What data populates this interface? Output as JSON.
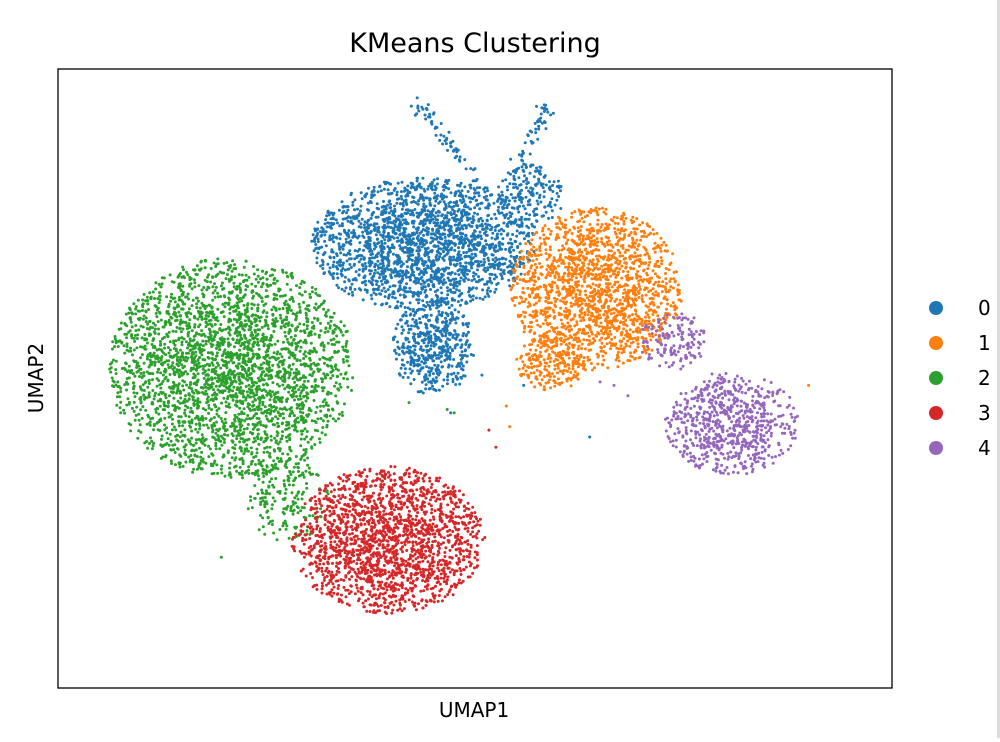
{
  "chart_data": {
    "type": "scatter",
    "title": "KMeans Clustering",
    "xlabel": "UMAP1",
    "ylabel": "UMAP2",
    "xlim": [
      -12,
      12
    ],
    "ylim": [
      -9,
      9
    ],
    "grid": false,
    "legend_position": "right",
    "series": [
      {
        "name": "0",
        "color": "#1f77b4",
        "blobs": [
          {
            "cx": -1.5,
            "cy": 3.9,
            "sx": 3.0,
            "sy": 1.8,
            "n": 2100
          },
          {
            "cx": -1.2,
            "cy": 0.9,
            "sx": 1.1,
            "sy": 1.3,
            "n": 500
          },
          {
            "cx": 1.6,
            "cy": 5.3,
            "sx": 0.9,
            "sy": 0.9,
            "n": 180
          }
        ],
        "arms": [
          {
            "from": [
              -1.5,
              7.8
            ],
            "to": [
              0.3,
              5.5
            ],
            "n": 55
          },
          {
            "from": [
              2.1,
              8.0
            ],
            "to": [
              1.1,
              5.8
            ],
            "n": 55
          },
          {
            "from": [
              -1.7,
              7.95
            ],
            "to": [
              -1.5,
              7.8
            ],
            "n": 10
          }
        ],
        "outliers": [
          [
            3.3,
            -1.7
          ],
          [
            1.4,
            -0.2
          ],
          [
            0.2,
            0.1
          ],
          [
            -0.7,
            -1.0
          ]
        ]
      },
      {
        "name": "1",
        "color": "#ff7f0e",
        "blobs": [
          {
            "cx": 3.5,
            "cy": 2.6,
            "sx": 2.3,
            "sy": 2.2,
            "n": 1700
          },
          {
            "cx": 2.2,
            "cy": 0.5,
            "sx": 1.0,
            "sy": 0.8,
            "n": 220
          }
        ],
        "arms": [],
        "outliers": [
          [
            9.6,
            -0.2
          ],
          [
            0.9,
            -0.8
          ],
          [
            1.0,
            -1.4
          ]
        ]
      },
      {
        "name": "2",
        "color": "#2ca02c",
        "blobs": [
          {
            "cx": -7.0,
            "cy": 0.3,
            "sx": 3.3,
            "sy": 3.0,
            "n": 2900
          },
          {
            "cx": -5.4,
            "cy": -3.4,
            "sx": 1.1,
            "sy": 1.3,
            "n": 200
          }
        ],
        "arms": [],
        "outliers": [
          [
            -0.6,
            -1.0
          ],
          [
            -0.8,
            -0.9
          ],
          [
            -7.3,
            -5.2
          ],
          [
            -1.9,
            -0.7
          ]
        ]
      },
      {
        "name": "3",
        "color": "#d62728",
        "blobs": [
          {
            "cx": -2.5,
            "cy": -4.7,
            "sx": 2.6,
            "sy": 2.0,
            "n": 1900
          }
        ],
        "arms": [],
        "outliers": [
          [
            0.4,
            -1.5
          ],
          [
            0.6,
            -2.0
          ]
        ]
      },
      {
        "name": "4",
        "color": "#9467bd",
        "blobs": [
          {
            "cx": 7.4,
            "cy": -1.3,
            "sx": 1.8,
            "sy": 1.4,
            "n": 700
          },
          {
            "cx": 5.7,
            "cy": 1.1,
            "sx": 0.9,
            "sy": 0.8,
            "n": 140
          }
        ],
        "arms": [],
        "outliers": [
          [
            4.0,
            -0.2
          ],
          [
            4.4,
            -0.5
          ],
          [
            3.6,
            -0.1
          ]
        ]
      }
    ]
  },
  "legend": {
    "items": [
      {
        "label": "0",
        "color": "#1f77b4"
      },
      {
        "label": "1",
        "color": "#ff7f0e"
      },
      {
        "label": "2",
        "color": "#2ca02c"
      },
      {
        "label": "3",
        "color": "#d62728"
      },
      {
        "label": "4",
        "color": "#9467bd"
      }
    ]
  }
}
